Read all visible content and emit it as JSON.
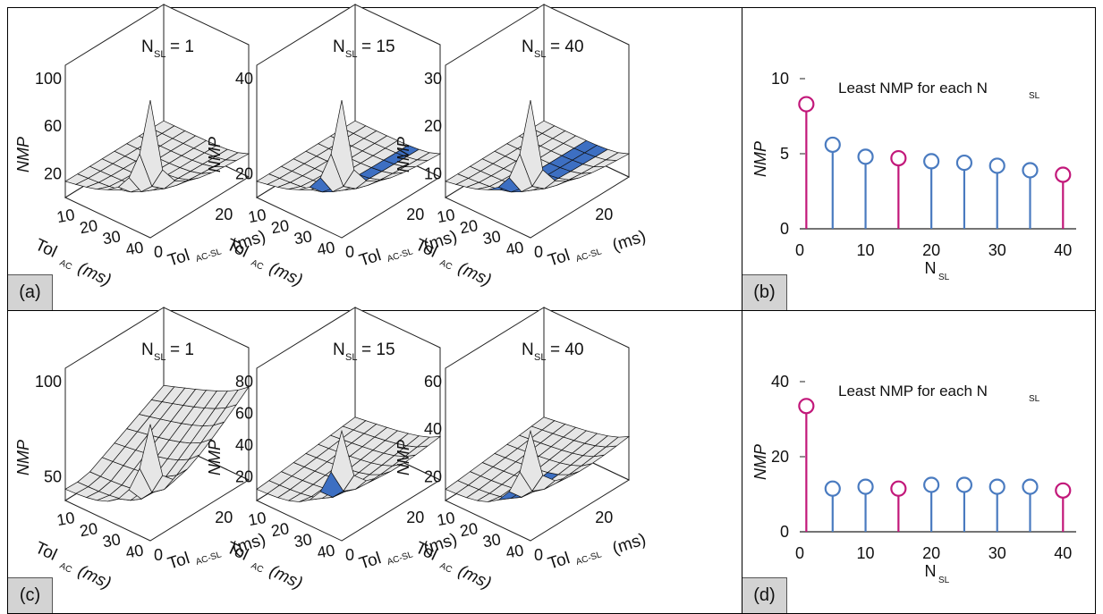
{
  "colors": {
    "magenta": "#c2187a",
    "blue": "#4a7bc0",
    "surface": "#e6e6e6",
    "highlight": "#3d6fc2",
    "tag_bg": "#d3d3d3"
  },
  "panels": {
    "a": {
      "label": "(a)"
    },
    "b": {
      "label": "(b)"
    },
    "c": {
      "label": "(c)"
    },
    "d": {
      "label": "(d)"
    }
  },
  "surface_common": {
    "z_label": "NMP",
    "tol_ac_main": "Tol",
    "tol_ac_sub": "AC",
    "tol_ac_unit": "(ms)",
    "tol_acsl_main": "Tol",
    "tol_acsl_sub": "AC-SL",
    "tol_acsl_unit": "(ms)",
    "tol_ac_ticks": [
      "10",
      "20",
      "30",
      "40"
    ],
    "tol_acsl_ticks": [
      "0",
      "20"
    ],
    "title_main": "N",
    "title_sub": "SL"
  },
  "row_top": {
    "surfaces": [
      {
        "title_value": "= 1",
        "z_ticks": [
          "100",
          "60",
          "20"
        ]
      },
      {
        "title_value": "= 15",
        "z_ticks": [
          "40",
          "20"
        ]
      },
      {
        "title_value": "= 40",
        "z_ticks": [
          "30",
          "20",
          "10"
        ]
      }
    ]
  },
  "row_bottom": {
    "surfaces": [
      {
        "title_value": "= 1",
        "z_ticks": [
          "100",
          "50"
        ]
      },
      {
        "title_value": "= 15",
        "z_ticks": [
          "80",
          "60",
          "40",
          "20"
        ]
      },
      {
        "title_value": "= 40",
        "z_ticks": [
          "60",
          "40",
          "20"
        ]
      }
    ]
  },
  "stem_common": {
    "title_main": "Least NMP for each N",
    "title_sub": "SL",
    "xlabel_main": "N",
    "xlabel_sub": "SL",
    "ylabel": "NMP"
  },
  "chart_data": [
    {
      "type": "scatter",
      "panel": "(b)",
      "title": "Least NMP for each NSL",
      "xlabel": "NSL",
      "ylabel": "NMP",
      "xlim": [
        0,
        42
      ],
      "ylim": [
        0,
        10
      ],
      "x_ticks": [
        "0",
        "10",
        "20",
        "30",
        "40"
      ],
      "y_ticks": [
        "0",
        "5",
        "10"
      ],
      "x": [
        1,
        5,
        10,
        15,
        20,
        25,
        30,
        35,
        40
      ],
      "values": [
        8.3,
        5.6,
        4.8,
        4.7,
        4.5,
        4.4,
        4.2,
        3.9,
        3.6
      ],
      "highlight": [
        true,
        false,
        false,
        true,
        false,
        false,
        false,
        false,
        true
      ]
    },
    {
      "type": "scatter",
      "panel": "(d)",
      "title": "Least NMP for each NSL",
      "xlabel": "NSL",
      "ylabel": "NMP",
      "xlim": [
        0,
        42
      ],
      "ylim": [
        0,
        40
      ],
      "x_ticks": [
        "0",
        "10",
        "20",
        "30",
        "40"
      ],
      "y_ticks": [
        "0",
        "20",
        "40"
      ],
      "x": [
        1,
        5,
        10,
        15,
        20,
        25,
        30,
        35,
        40
      ],
      "values": [
        33.5,
        11.5,
        12,
        11.5,
        12.5,
        12.5,
        12,
        12,
        11
      ],
      "highlight": [
        true,
        false,
        false,
        true,
        false,
        false,
        false,
        false,
        true
      ]
    }
  ]
}
